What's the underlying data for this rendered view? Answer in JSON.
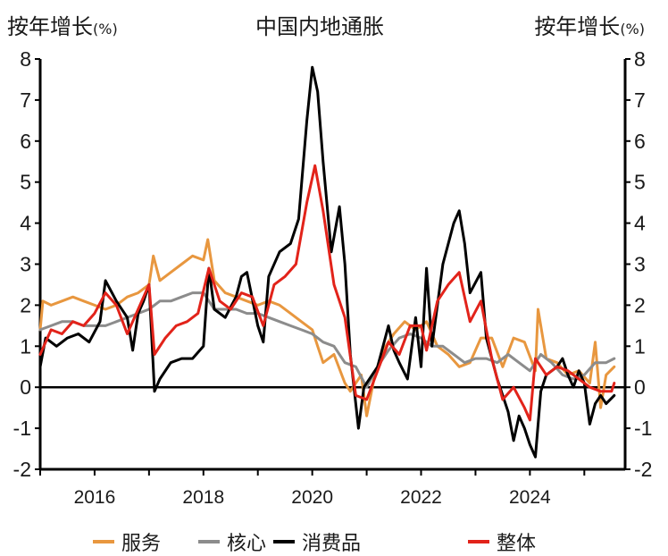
{
  "chart_data": {
    "type": "line",
    "title": "中国内地通胀",
    "ylabel_left": "按年增长",
    "ylabel_right": "按年增长",
    "unit": "(%)",
    "ylim": [
      -2,
      8
    ],
    "yticks": [
      -2,
      -1,
      0,
      1,
      2,
      3,
      4,
      5,
      6,
      7,
      8
    ],
    "xlim": [
      2015.0,
      2025.75
    ],
    "xticks": [
      "2016",
      "2018",
      "2020",
      "2022",
      "2024"
    ],
    "grid": false,
    "legend_position": "bottom",
    "series": [
      {
        "name": "服务",
        "color": "#e8973f",
        "points": [
          [
            2015.0,
            1.4
          ],
          [
            2015.05,
            2.1
          ],
          [
            2015.2,
            2.0
          ],
          [
            2015.4,
            2.1
          ],
          [
            2015.6,
            2.2
          ],
          [
            2015.8,
            2.1
          ],
          [
            2016.0,
            2.0
          ],
          [
            2016.2,
            1.9
          ],
          [
            2016.4,
            2.0
          ],
          [
            2016.6,
            2.2
          ],
          [
            2016.8,
            2.3
          ],
          [
            2017.0,
            2.5
          ],
          [
            2017.08,
            3.2
          ],
          [
            2017.2,
            2.6
          ],
          [
            2017.4,
            2.8
          ],
          [
            2017.6,
            3.0
          ],
          [
            2017.8,
            3.2
          ],
          [
            2018.0,
            3.1
          ],
          [
            2018.08,
            3.6
          ],
          [
            2018.2,
            2.6
          ],
          [
            2018.4,
            2.3
          ],
          [
            2018.6,
            2.2
          ],
          [
            2018.8,
            2.1
          ],
          [
            2019.0,
            2.0
          ],
          [
            2019.2,
            2.1
          ],
          [
            2019.4,
            2.0
          ],
          [
            2019.6,
            1.8
          ],
          [
            2019.8,
            1.6
          ],
          [
            2020.0,
            1.4
          ],
          [
            2020.1,
            1.0
          ],
          [
            2020.2,
            0.6
          ],
          [
            2020.4,
            0.8
          ],
          [
            2020.6,
            0.1
          ],
          [
            2020.7,
            -0.1
          ],
          [
            2020.9,
            0.3
          ],
          [
            2021.0,
            -0.7
          ],
          [
            2021.15,
            0.3
          ],
          [
            2021.3,
            0.9
          ],
          [
            2021.5,
            1.3
          ],
          [
            2021.7,
            1.6
          ],
          [
            2021.9,
            1.4
          ],
          [
            2022.1,
            1.6
          ],
          [
            2022.3,
            1.0
          ],
          [
            2022.5,
            0.8
          ],
          [
            2022.7,
            0.5
          ],
          [
            2022.9,
            0.6
          ],
          [
            2023.1,
            1.2
          ],
          [
            2023.3,
            1.2
          ],
          [
            2023.5,
            0.5
          ],
          [
            2023.7,
            1.2
          ],
          [
            2023.9,
            1.1
          ],
          [
            2024.1,
            0.4
          ],
          [
            2024.15,
            1.9
          ],
          [
            2024.3,
            0.7
          ],
          [
            2024.5,
            0.6
          ],
          [
            2024.7,
            0.3
          ],
          [
            2024.9,
            0.4
          ],
          [
            2025.1,
            0.1
          ],
          [
            2025.2,
            1.1
          ],
          [
            2025.3,
            -0.5
          ],
          [
            2025.4,
            0.3
          ],
          [
            2025.55,
            0.5
          ]
        ]
      },
      {
        "name": "核心",
        "color": "#8c8c8c",
        "points": [
          [
            2015.0,
            1.4
          ],
          [
            2015.2,
            1.5
          ],
          [
            2015.4,
            1.6
          ],
          [
            2015.6,
            1.6
          ],
          [
            2015.8,
            1.5
          ],
          [
            2016.0,
            1.5
          ],
          [
            2016.2,
            1.5
          ],
          [
            2016.4,
            1.6
          ],
          [
            2016.6,
            1.7
          ],
          [
            2016.8,
            1.8
          ],
          [
            2017.0,
            1.9
          ],
          [
            2017.2,
            2.1
          ],
          [
            2017.4,
            2.1
          ],
          [
            2017.6,
            2.2
          ],
          [
            2017.8,
            2.3
          ],
          [
            2018.0,
            2.3
          ],
          [
            2018.2,
            1.9
          ],
          [
            2018.4,
            1.9
          ],
          [
            2018.6,
            1.9
          ],
          [
            2018.8,
            1.8
          ],
          [
            2019.0,
            1.8
          ],
          [
            2019.2,
            1.7
          ],
          [
            2019.4,
            1.6
          ],
          [
            2019.6,
            1.5
          ],
          [
            2019.8,
            1.4
          ],
          [
            2020.0,
            1.3
          ],
          [
            2020.2,
            1.1
          ],
          [
            2020.4,
            1.0
          ],
          [
            2020.6,
            0.6
          ],
          [
            2020.8,
            0.5
          ],
          [
            2021.0,
            0.0
          ],
          [
            2021.2,
            0.5
          ],
          [
            2021.4,
            0.9
          ],
          [
            2021.6,
            1.2
          ],
          [
            2021.8,
            1.3
          ],
          [
            2022.0,
            1.2
          ],
          [
            2022.2,
            1.0
          ],
          [
            2022.4,
            1.0
          ],
          [
            2022.6,
            0.8
          ],
          [
            2022.8,
            0.6
          ],
          [
            2023.0,
            0.7
          ],
          [
            2023.2,
            0.7
          ],
          [
            2023.4,
            0.6
          ],
          [
            2023.6,
            0.8
          ],
          [
            2023.8,
            0.6
          ],
          [
            2024.0,
            0.4
          ],
          [
            2024.2,
            0.8
          ],
          [
            2024.4,
            0.6
          ],
          [
            2024.6,
            0.3
          ],
          [
            2024.8,
            0.2
          ],
          [
            2025.0,
            0.3
          ],
          [
            2025.2,
            0.6
          ],
          [
            2025.4,
            0.6
          ],
          [
            2025.55,
            0.7
          ]
        ]
      },
      {
        "name": "消费品",
        "color": "#000000",
        "points": [
          [
            2015.0,
            0.5
          ],
          [
            2015.1,
            1.2
          ],
          [
            2015.3,
            1.0
          ],
          [
            2015.5,
            1.2
          ],
          [
            2015.7,
            1.3
          ],
          [
            2015.9,
            1.1
          ],
          [
            2016.1,
            1.6
          ],
          [
            2016.2,
            2.6
          ],
          [
            2016.4,
            2.1
          ],
          [
            2016.6,
            1.7
          ],
          [
            2016.7,
            0.9
          ],
          [
            2016.8,
            1.8
          ],
          [
            2016.9,
            2.1
          ],
          [
            2017.0,
            2.5
          ],
          [
            2017.1,
            -0.1
          ],
          [
            2017.2,
            0.2
          ],
          [
            2017.4,
            0.6
          ],
          [
            2017.6,
            0.7
          ],
          [
            2017.8,
            0.7
          ],
          [
            2018.0,
            1.0
          ],
          [
            2018.1,
            2.9
          ],
          [
            2018.2,
            1.9
          ],
          [
            2018.4,
            1.7
          ],
          [
            2018.6,
            2.2
          ],
          [
            2018.7,
            2.7
          ],
          [
            2018.8,
            2.8
          ],
          [
            2019.0,
            1.5
          ],
          [
            2019.1,
            1.1
          ],
          [
            2019.2,
            2.7
          ],
          [
            2019.4,
            3.3
          ],
          [
            2019.6,
            3.5
          ],
          [
            2019.75,
            4.1
          ],
          [
            2019.9,
            6.5
          ],
          [
            2020.0,
            7.8
          ],
          [
            2020.1,
            7.2
          ],
          [
            2020.2,
            5.5
          ],
          [
            2020.35,
            3.3
          ],
          [
            2020.5,
            4.4
          ],
          [
            2020.6,
            3.0
          ],
          [
            2020.7,
            0.8
          ],
          [
            2020.85,
            -1.0
          ],
          [
            2020.95,
            0.0
          ],
          [
            2021.1,
            0.3
          ],
          [
            2021.2,
            0.5
          ],
          [
            2021.4,
            1.5
          ],
          [
            2021.5,
            0.9
          ],
          [
            2021.6,
            0.6
          ],
          [
            2021.75,
            0.2
          ],
          [
            2021.9,
            1.7
          ],
          [
            2022.0,
            0.5
          ],
          [
            2022.1,
            2.9
          ],
          [
            2022.2,
            1.0
          ],
          [
            2022.4,
            3.0
          ],
          [
            2022.6,
            4.0
          ],
          [
            2022.7,
            4.3
          ],
          [
            2022.8,
            3.5
          ],
          [
            2022.9,
            2.3
          ],
          [
            2023.1,
            2.8
          ],
          [
            2023.2,
            1.2
          ],
          [
            2023.4,
            0.2
          ],
          [
            2023.6,
            -0.6
          ],
          [
            2023.7,
            -1.3
          ],
          [
            2023.8,
            -0.7
          ],
          [
            2023.9,
            -1.0
          ],
          [
            2024.0,
            -1.4
          ],
          [
            2024.1,
            -1.7
          ],
          [
            2024.2,
            -0.1
          ],
          [
            2024.3,
            0.3
          ],
          [
            2024.5,
            0.5
          ],
          [
            2024.6,
            0.7
          ],
          [
            2024.7,
            0.3
          ],
          [
            2024.8,
            0.0
          ],
          [
            2024.9,
            0.4
          ],
          [
            2025.0,
            0.1
          ],
          [
            2025.1,
            -0.9
          ],
          [
            2025.2,
            -0.4
          ],
          [
            2025.3,
            -0.2
          ],
          [
            2025.4,
            -0.4
          ],
          [
            2025.55,
            -0.2
          ]
        ]
      },
      {
        "name": "整体",
        "color": "#e2231a",
        "points": [
          [
            2015.0,
            0.8
          ],
          [
            2015.2,
            1.4
          ],
          [
            2015.4,
            1.3
          ],
          [
            2015.6,
            1.6
          ],
          [
            2015.8,
            1.5
          ],
          [
            2016.0,
            1.8
          ],
          [
            2016.2,
            2.3
          ],
          [
            2016.4,
            2.0
          ],
          [
            2016.6,
            1.3
          ],
          [
            2016.8,
            1.9
          ],
          [
            2017.0,
            2.5
          ],
          [
            2017.1,
            0.8
          ],
          [
            2017.3,
            1.2
          ],
          [
            2017.5,
            1.5
          ],
          [
            2017.7,
            1.6
          ],
          [
            2017.9,
            1.8
          ],
          [
            2018.1,
            2.9
          ],
          [
            2018.3,
            2.1
          ],
          [
            2018.5,
            1.9
          ],
          [
            2018.7,
            2.3
          ],
          [
            2018.9,
            2.2
          ],
          [
            2019.1,
            1.5
          ],
          [
            2019.3,
            2.5
          ],
          [
            2019.5,
            2.7
          ],
          [
            2019.7,
            3.0
          ],
          [
            2019.9,
            4.5
          ],
          [
            2020.05,
            5.4
          ],
          [
            2020.2,
            4.3
          ],
          [
            2020.4,
            2.5
          ],
          [
            2020.6,
            1.7
          ],
          [
            2020.8,
            -0.2
          ],
          [
            2021.0,
            -0.3
          ],
          [
            2021.2,
            0.4
          ],
          [
            2021.4,
            1.1
          ],
          [
            2021.6,
            0.8
          ],
          [
            2021.8,
            1.5
          ],
          [
            2022.0,
            1.5
          ],
          [
            2022.1,
            0.9
          ],
          [
            2022.3,
            2.1
          ],
          [
            2022.5,
            2.5
          ],
          [
            2022.7,
            2.8
          ],
          [
            2022.9,
            1.6
          ],
          [
            2023.1,
            2.1
          ],
          [
            2023.3,
            0.7
          ],
          [
            2023.5,
            -0.3
          ],
          [
            2023.7,
            0.0
          ],
          [
            2023.9,
            -0.5
          ],
          [
            2024.0,
            -0.8
          ],
          [
            2024.1,
            0.7
          ],
          [
            2024.3,
            0.3
          ],
          [
            2024.5,
            0.5
          ],
          [
            2024.7,
            0.4
          ],
          [
            2024.9,
            0.2
          ],
          [
            2025.1,
            0.0
          ],
          [
            2025.3,
            -0.1
          ],
          [
            2025.5,
            -0.1
          ],
          [
            2025.55,
            0.1
          ]
        ]
      }
    ]
  }
}
